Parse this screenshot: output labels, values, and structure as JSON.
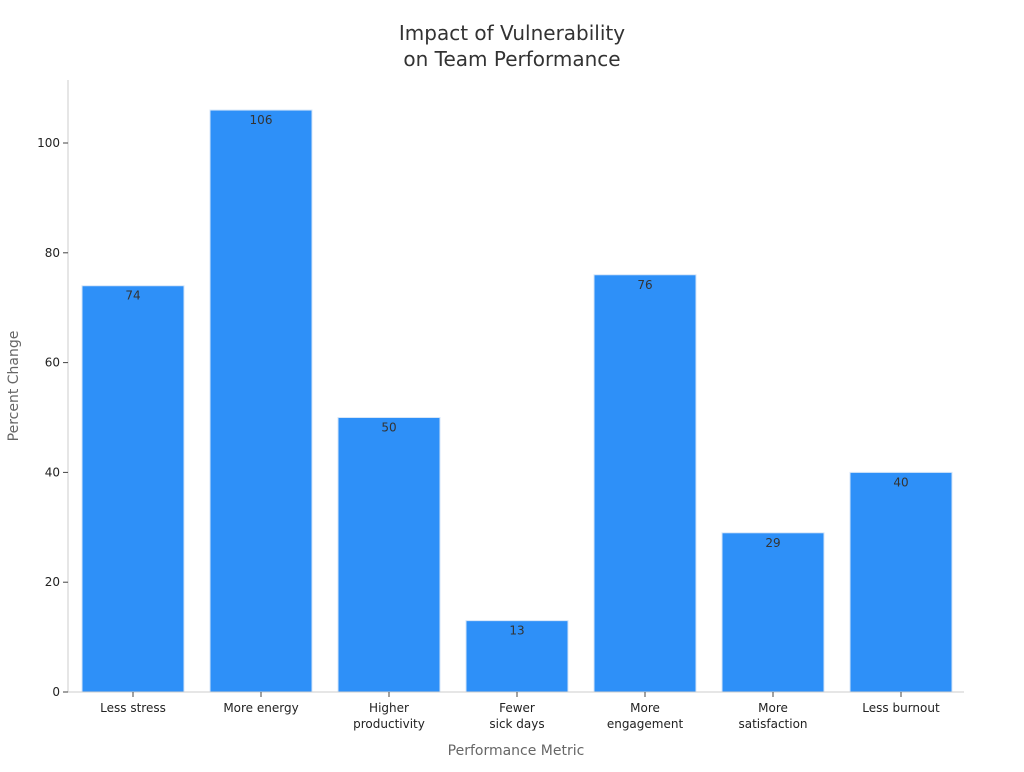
{
  "chart_data": {
    "type": "bar",
    "title_lines": [
      "Impact of Vulnerability",
      "on Team Performance"
    ],
    "xlabel": "Performance Metric",
    "ylabel": "Percent Change",
    "categories": [
      [
        "Less stress"
      ],
      [
        "More energy"
      ],
      [
        "Higher",
        "productivity"
      ],
      [
        "Fewer",
        "sick days"
      ],
      [
        "More",
        "engagement"
      ],
      [
        "More",
        "satisfaction"
      ],
      [
        "Less burnout"
      ]
    ],
    "values": [
      74,
      106,
      50,
      13,
      76,
      29,
      40
    ],
    "ylim": [
      0,
      111
    ],
    "yticks": [
      0,
      20,
      40,
      60,
      80,
      100
    ],
    "grid": false,
    "legend": "none",
    "bar_color": "#2e90f8",
    "bar_edge_color": "#d6e6f8"
  }
}
